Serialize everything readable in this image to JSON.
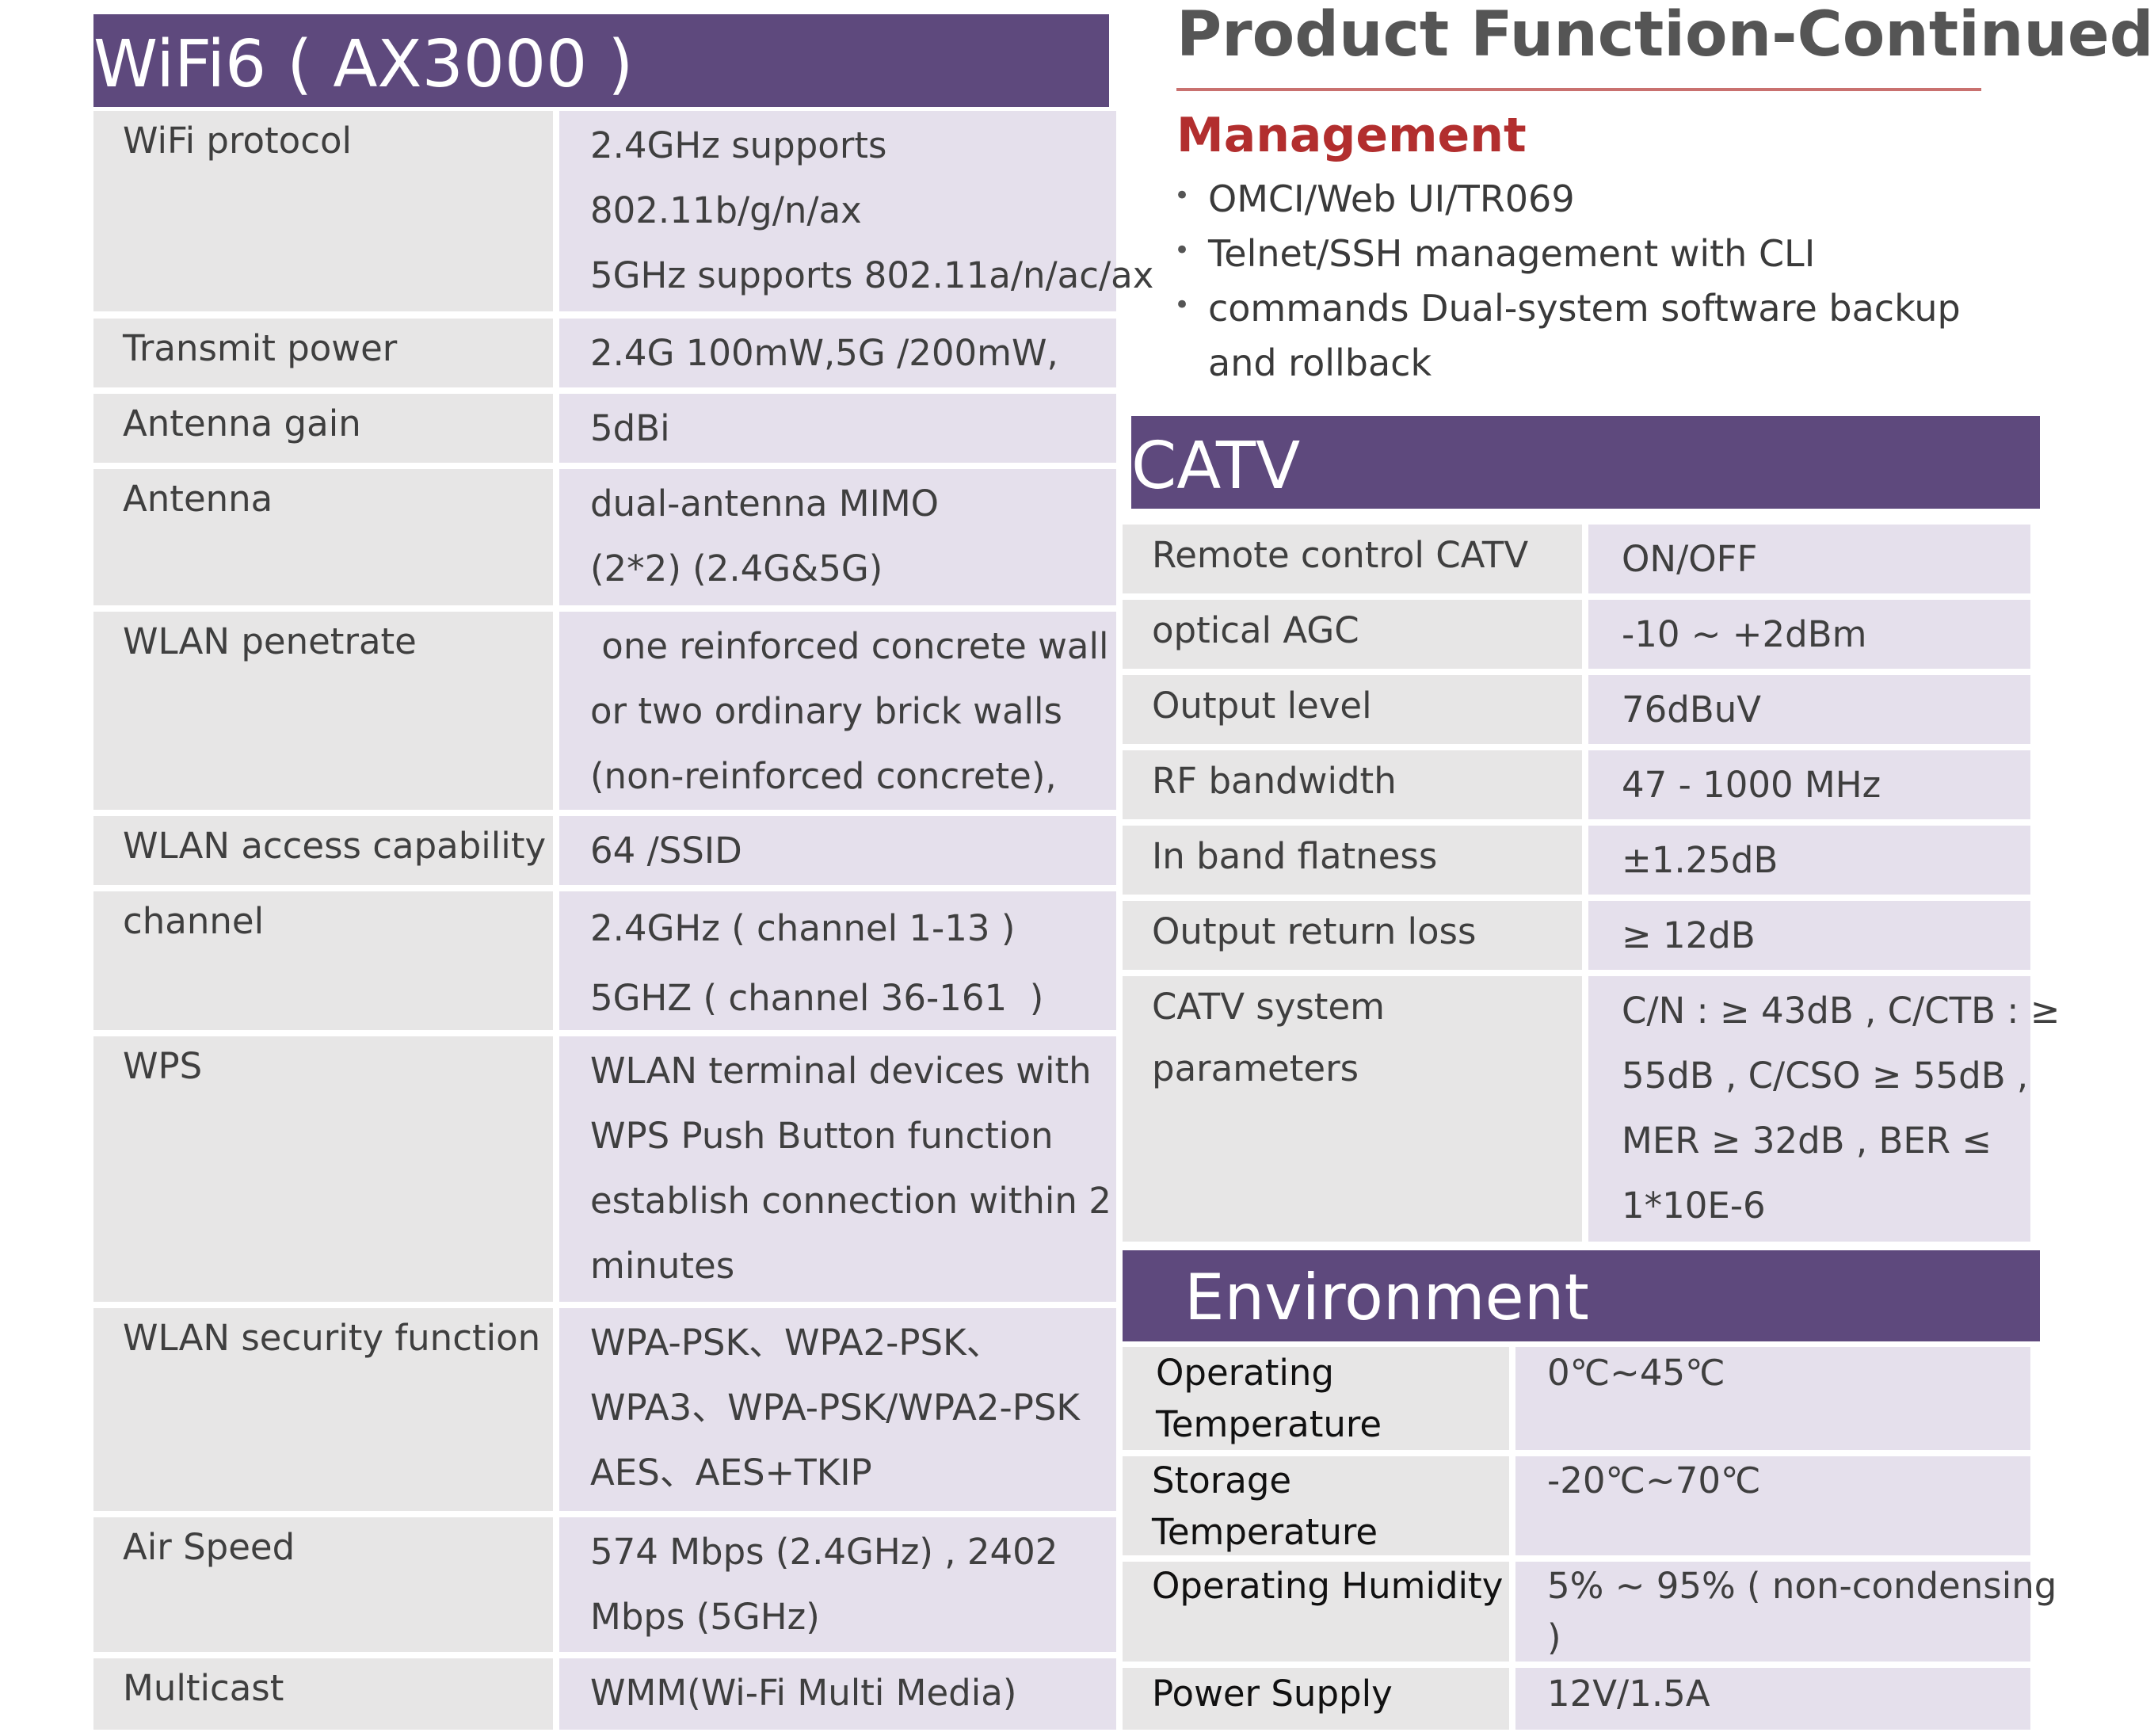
{
  "wifi": {
    "title": "WiFi6 ( AX3000 )",
    "rows": [
      {
        "label": "WiFi protocol",
        "value": "2.4GHz supports\n802.11b/g/n/ax\n5GHz supports 802.11a/n/ac/ax"
      },
      {
        "label": "Transmit power",
        "value": "2.4G 100mW,5G /200mW,"
      },
      {
        "label": "Antenna gain",
        "value": "5dBi"
      },
      {
        "label": "Antenna",
        "value": "dual-antenna MIMO\n(2*2)  (2.4G&5G)"
      },
      {
        "label": "WLAN penetrate",
        "value": " one reinforced concrete wall\nor two ordinary brick walls\n(non-reinforced concrete),"
      },
      {
        "label": "WLAN access capability",
        "value": "64 /SSID"
      },
      {
        "label": "channel",
        "value": "2.4GHz ( channel 1-13 )\n5GHZ ( channel 36-161  )"
      },
      {
        "label": "WPS",
        "value": "WLAN terminal devices with\nWPS Push Button function\nestablish connection within 2\nminutes"
      },
      {
        "label": "WLAN security function",
        "value": "WPA-PSK、WPA2-PSK、\nWPA3、WPA-PSK/WPA2-PSK\nAES、AES+TKIP"
      },
      {
        "label": "Air Speed",
        "value": "574 Mbps (2.4GHz) , 2402\nMbps (5GHz)"
      },
      {
        "label": "Multicast",
        "value": "WMM(Wi-Fi Multi Media)"
      }
    ]
  },
  "product": {
    "title": "Product Function-Continued",
    "subtitle": "Management",
    "bullets": [
      "OMCI/Web UI/TR069",
      "Telnet/SSH management with CLI",
      "commands Dual-system software backup\nand rollback"
    ]
  },
  "catv": {
    "title": "CATV",
    "rows": [
      {
        "label": "Remote control CATV",
        "value": "ON/OFF"
      },
      {
        "label": "optical AGC",
        "value": "-10 ~ +2dBm"
      },
      {
        "label": "Output level",
        "value": "76dBuV"
      },
      {
        "label": "RF bandwidth",
        "value": "47 - 1000 MHz"
      },
      {
        "label": "In band flatness",
        "value": "±1.25dB"
      },
      {
        "label": "Output return loss",
        "value": "≥ 12dB"
      },
      {
        "label": "CATV system parameters",
        "value": "C/N : ≥ 43dB , C/CTB : ≥\n55dB , C/CSO ≥ 55dB ,\nMER ≥ 32dB , BER ≤\n1*10E-6"
      }
    ]
  },
  "environment": {
    "title": "Environment",
    "rows": [
      {
        "label": "Operating\nTemperature",
        "value": "0℃~45℃"
      },
      {
        "label": "Storage\nTemperature",
        "value": "-20℃~70℃"
      },
      {
        "label": "Operating Humidity",
        "value": "5% ~ 95% ( non-condensing\n)"
      },
      {
        "label": "Power Supply",
        "value": "12V/1.5A"
      }
    ]
  }
}
